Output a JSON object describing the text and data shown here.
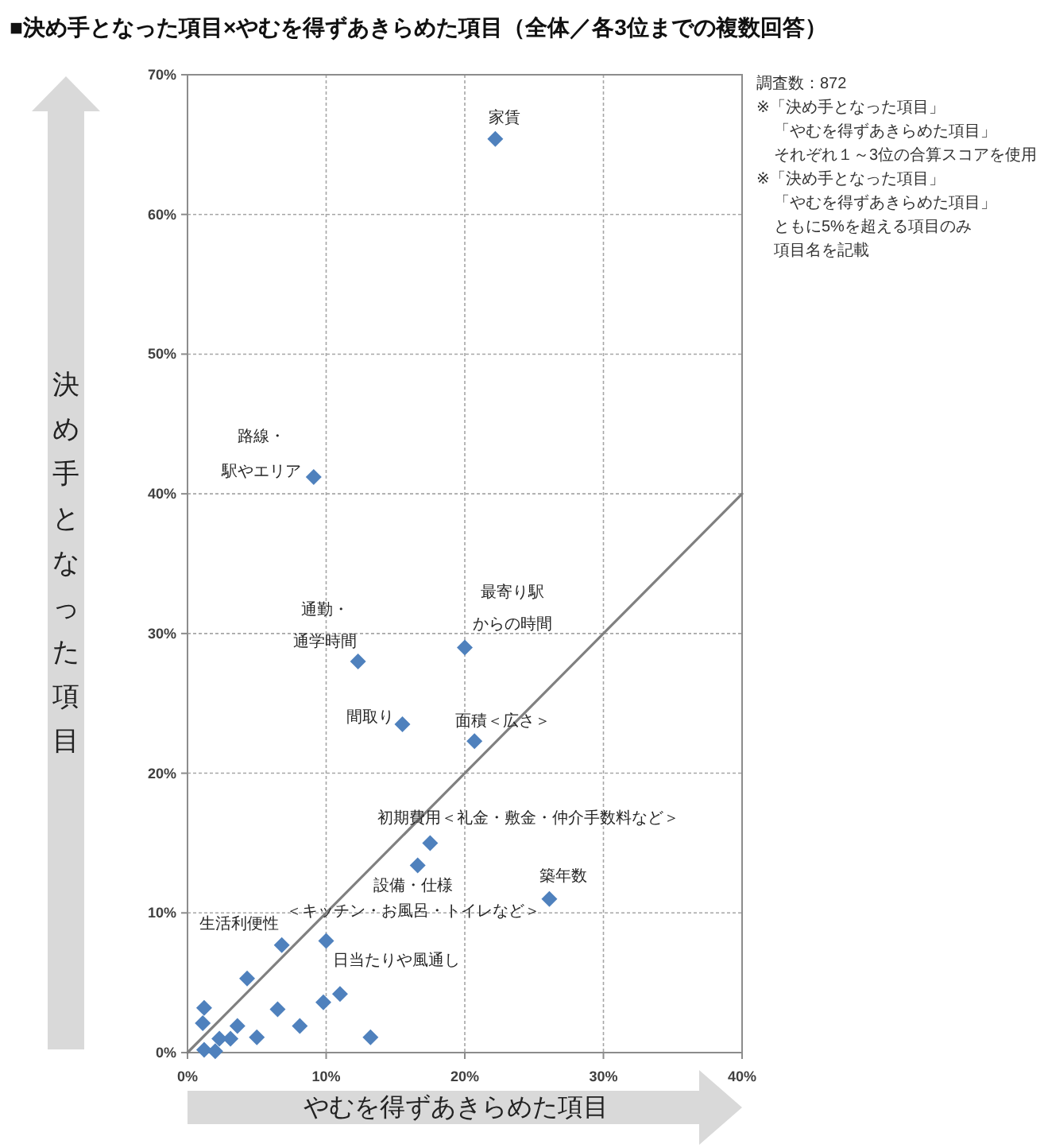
{
  "chart_data": {
    "type": "scatter",
    "title": "■決め手となった項目×やむを得ずあきらめた項目（全体／各3位までの複数回答）",
    "xlabel": "やむを得ずあきらめた項目",
    "ylabel": "決め手となった項目",
    "xlim": [
      0,
      40
    ],
    "ylim": [
      0,
      70
    ],
    "xticks": [
      {
        "value": 0,
        "label": "0%"
      },
      {
        "value": 10,
        "label": "10%"
      },
      {
        "value": 20,
        "label": "20%"
      },
      {
        "value": 30,
        "label": "30%"
      },
      {
        "value": 40,
        "label": "40%"
      }
    ],
    "yticks": [
      {
        "value": 0,
        "label": "0%"
      },
      {
        "value": 10,
        "label": "10%"
      },
      {
        "value": 20,
        "label": "20%"
      },
      {
        "value": 30,
        "label": "30%"
      },
      {
        "value": 40,
        "label": "40%"
      },
      {
        "value": 50,
        "label": "50%"
      },
      {
        "value": 60,
        "label": "60%"
      },
      {
        "value": 70,
        "label": "70%"
      }
    ],
    "grid": true,
    "series": [
      {
        "color": "#4f81bd",
        "marker": "diamond",
        "x": [
          22.2,
          9.1,
          20.0,
          12.3,
          15.5,
          20.7,
          17.5,
          16.6,
          26.1,
          6.8,
          10.0,
          4.3,
          11.0,
          9.8,
          6.5,
          1.2,
          1.1,
          3.6,
          8.1,
          3.1,
          5.0,
          2.3,
          13.2,
          1.2,
          2.0
        ],
        "values": [
          65.4,
          41.2,
          29.0,
          28.0,
          23.5,
          22.3,
          15.0,
          13.4,
          11.0,
          7.7,
          8.0,
          5.3,
          4.2,
          3.6,
          3.1,
          3.2,
          2.1,
          1.9,
          1.9,
          1.0,
          1.1,
          1.0,
          1.1,
          0.2,
          0.1
        ]
      },
      {
        "type": "line",
        "color": "#808080",
        "x": [
          0,
          40
        ],
        "values": [
          0,
          40
        ]
      }
    ],
    "annotations": [
      {
        "text": "家賃",
        "x": 22.2,
        "y": 65.4
      },
      {
        "text": "路線・駅やエリア",
        "x": 9.1,
        "y": 41.2
      },
      {
        "text": "最寄り駅からの時間",
        "x": 20.0,
        "y": 29.0
      },
      {
        "text": "通勤・通学時間",
        "x": 12.3,
        "y": 28.0
      },
      {
        "text": "間取り",
        "x": 15.5,
        "y": 23.5
      },
      {
        "text": "面積＜広さ＞",
        "x": 20.7,
        "y": 22.3
      },
      {
        "text": "初期費用＜礼金・敷金・仲介手数料など＞",
        "x": 17.5,
        "y": 15.0
      },
      {
        "text": "設備・仕様＜キッチン・お風呂・トイレなど＞",
        "x": 16.6,
        "y": 13.4
      },
      {
        "text": "築年数",
        "x": 26.1,
        "y": 11.0
      },
      {
        "text": "生活利便性",
        "x": 6.8,
        "y": 7.7
      },
      {
        "text": "日当たりや風通し",
        "x": 10.0,
        "y": 8.0
      },
      "調査数：872",
      "※「決め手となった項目」「やむを得ずあきらめた項目」それぞれ１～3位の合算スコアを使用",
      "※「決め手となった項目」「やむを得ずあきらめた項目」ともに5%を超える項目のみ項目名を記載"
    ]
  }
}
